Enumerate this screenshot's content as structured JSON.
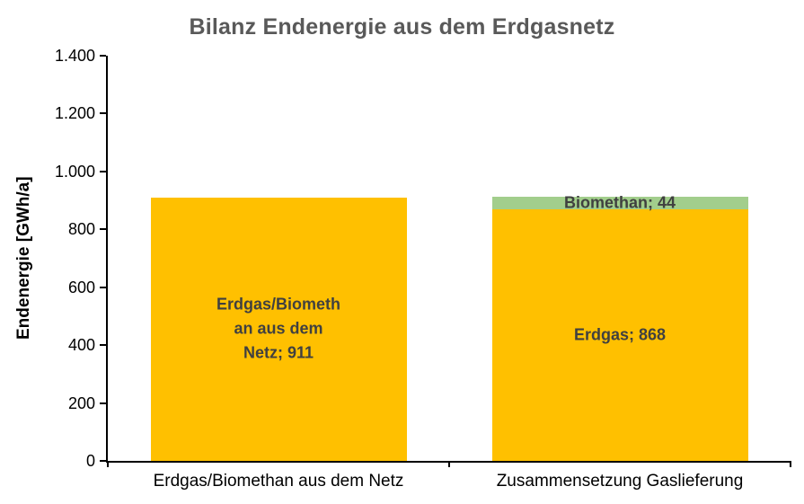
{
  "chart_data": {
    "type": "bar",
    "stacked": true,
    "title": "Bilanz Endenergie aus dem Erdgasnetz",
    "ylabel": "Endenergie [GWh/a]",
    "xlabel": "",
    "ylim": [
      0,
      1400
    ],
    "ytick_step": 200,
    "grid": false,
    "legend": "none",
    "yticks": [
      {
        "value": 0,
        "label": "0"
      },
      {
        "value": 200,
        "label": "200"
      },
      {
        "value": 400,
        "label": "400"
      },
      {
        "value": 600,
        "label": "600"
      },
      {
        "value": 800,
        "label": "800"
      },
      {
        "value": 1000,
        "label": "1.000"
      },
      {
        "value": 1200,
        "label": "1.200"
      },
      {
        "value": 1400,
        "label": "1.400"
      }
    ],
    "categories": [
      "Erdgas/Biomethan aus dem Netz",
      "Zusammensetzung Gaslieferung"
    ],
    "stacks": [
      {
        "category": "Erdgas/Biomethan aus dem Netz",
        "segments": [
          {
            "name": "Erdgas/Biomethan aus dem Netz",
            "value": 911,
            "color": "#FFC000",
            "label": "Erdgas/Biometh\nan aus dem\nNetz; 911"
          }
        ]
      },
      {
        "category": "Zusammensetzung Gaslieferung",
        "segments": [
          {
            "name": "Erdgas",
            "value": 868,
            "color": "#FFC000",
            "label": "Erdgas; 868"
          },
          {
            "name": "Biomethan",
            "value": 44,
            "color": "#A2CE8C",
            "label": "Biomethan; 44"
          }
        ]
      }
    ]
  },
  "colors": {
    "title": "#595959",
    "axis": "#000000",
    "bar_yellow": "#FFC000",
    "bar_green": "#A2CE8C",
    "bar_label_text": "#404040",
    "background": "#FFFFFF"
  }
}
